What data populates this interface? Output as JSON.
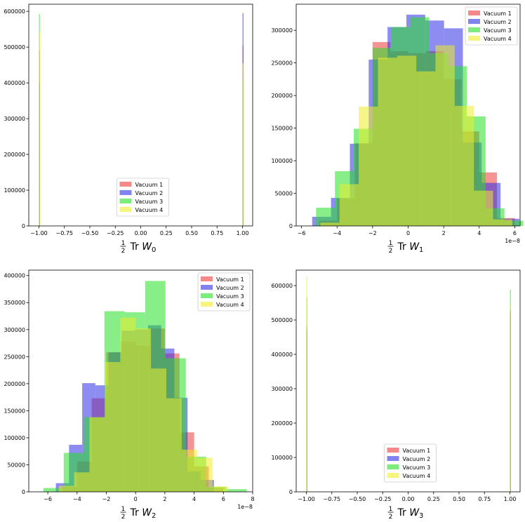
{
  "colors": {
    "vac1": "#ef3b3b",
    "vac2": "#2f2fe6",
    "vac3": "#27e027",
    "vac4": "#eded2a"
  },
  "chart_data": [
    {
      "type": "bar",
      "label_prefix": "1/2 Tr W",
      "label_sub": "0",
      "xlim": [
        -1.1,
        1.1
      ],
      "ylim": [
        0,
        620000
      ],
      "xticks": [
        -1.0,
        -0.75,
        -0.5,
        -0.25,
        0.0,
        0.25,
        0.5,
        0.75,
        1.0
      ],
      "xtick_labels": [
        "−1.00",
        "−0.75",
        "−0.50",
        "−0.25",
        "0.00",
        "0.25",
        "0.50",
        "0.75",
        "1.00"
      ],
      "yticks": [
        0,
        100000,
        200000,
        300000,
        400000,
        500000,
        600000
      ],
      "ytick_labels": [
        "0",
        "100000",
        "200000",
        "300000",
        "400000",
        "500000",
        "600000"
      ],
      "offset": "",
      "legend_position": "lower-center",
      "series": [
        {
          "name": "Vacuum 1",
          "bars": [
            {
              "x": -1.0,
              "w": 0.004,
              "h": 490000
            },
            {
              "x": 1.0,
              "w": 0.004,
              "h": 505000
            }
          ]
        },
        {
          "name": "Vacuum 2",
          "bars": [
            {
              "x": -1.0,
              "w": 0.004,
              "h": 400000
            },
            {
              "x": 1.0,
              "w": 0.004,
              "h": 595000
            }
          ]
        },
        {
          "name": "Vacuum 3",
          "bars": [
            {
              "x": -1.0,
              "w": 0.004,
              "h": 592000
            },
            {
              "x": 1.0,
              "w": 0.004,
              "h": 408000
            }
          ]
        },
        {
          "name": "Vacuum 4",
          "bars": [
            {
              "x": -1.0,
              "w": 0.004,
              "h": 545000
            },
            {
              "x": 1.0,
              "w": 0.004,
              "h": 455000
            }
          ]
        }
      ]
    },
    {
      "type": "bar",
      "label_prefix": "1/2 Tr W",
      "label_sub": "1",
      "xlim": [
        -6.3,
        6.3
      ],
      "ylim": [
        0,
        340000
      ],
      "xticks": [
        -6,
        -4,
        -2,
        0,
        2,
        4,
        6
      ],
      "xtick_labels": [
        "−6",
        "−4",
        "−2",
        "0",
        "2",
        "4",
        "6"
      ],
      "yticks": [
        0,
        50000,
        100000,
        150000,
        200000,
        250000,
        300000
      ],
      "ytick_labels": [
        "0",
        "50000",
        "100000",
        "150000",
        "200000",
        "250000",
        "300000"
      ],
      "offset": "1e−8",
      "legend_position": "upper-right",
      "series": [
        {
          "name": "Vacuum 1",
          "bars": [
            {
              "x": -5.0,
              "w": 1.0,
              "h": 8000
            },
            {
              "x": -4.0,
              "w": 1.0,
              "h": 42000
            },
            {
              "x": -3.0,
              "w": 1.0,
              "h": 127000
            },
            {
              "x": -2.0,
              "w": 1.0,
              "h": 282000
            },
            {
              "x": -1.0,
              "w": 1.0,
              "h": 268000
            },
            {
              "x": 0.0,
              "w": 1.0,
              "h": 265000
            },
            {
              "x": 1.0,
              "w": 1.0,
              "h": 268000
            },
            {
              "x": 2.0,
              "w": 1.0,
              "h": 225000
            },
            {
              "x": 3.0,
              "w": 1.0,
              "h": 145000
            },
            {
              "x": 4.0,
              "w": 1.0,
              "h": 82000
            },
            {
              "x": 5.0,
              "w": 1.0,
              "h": 12000
            }
          ]
        },
        {
          "name": "Vacuum 2",
          "bars": [
            {
              "x": -5.4,
              "w": 1.06,
              "h": 14000
            },
            {
              "x": -4.34,
              "w": 1.06,
              "h": 43000
            },
            {
              "x": -3.28,
              "w": 1.06,
              "h": 126000
            },
            {
              "x": -2.22,
              "w": 1.06,
              "h": 255000
            },
            {
              "x": -1.16,
              "w": 1.06,
              "h": 305000
            },
            {
              "x": -0.1,
              "w": 1.06,
              "h": 324000
            },
            {
              "x": 0.96,
              "w": 1.06,
              "h": 315000
            },
            {
              "x": 2.02,
              "w": 1.06,
              "h": 303000
            },
            {
              "x": 3.08,
              "w": 1.06,
              "h": 128000
            },
            {
              "x": 4.14,
              "w": 1.06,
              "h": 66000
            },
            {
              "x": 5.2,
              "w": 1.06,
              "h": 11000
            }
          ]
        },
        {
          "name": "Vacuum 3",
          "bars": [
            {
              "x": -5.18,
              "w": 1.06,
              "h": 28000
            },
            {
              "x": -4.12,
              "w": 1.06,
              "h": 84000
            },
            {
              "x": -3.06,
              "w": 1.06,
              "h": 149000
            },
            {
              "x": -2.0,
              "w": 1.06,
              "h": 273000
            },
            {
              "x": -0.94,
              "w": 1.06,
              "h": 305000
            },
            {
              "x": 0.12,
              "w": 1.06,
              "h": 320000
            },
            {
              "x": 1.18,
              "w": 1.06,
              "h": 265000
            },
            {
              "x": 2.24,
              "w": 1.06,
              "h": 245000
            },
            {
              "x": 3.3,
              "w": 1.06,
              "h": 168000
            },
            {
              "x": 4.36,
              "w": 1.06,
              "h": 27000
            },
            {
              "x": 5.42,
              "w": 1.06,
              "h": 8000
            }
          ]
        },
        {
          "name": "Vacuum 4",
          "bars": [
            {
              "x": -4.94,
              "w": 1.08,
              "h": 5000
            },
            {
              "x": -3.86,
              "w": 1.08,
              "h": 64000
            },
            {
              "x": -2.78,
              "w": 1.08,
              "h": 183000
            },
            {
              "x": -1.7,
              "w": 1.08,
              "h": 258000
            },
            {
              "x": -0.62,
              "w": 1.08,
              "h": 261000
            },
            {
              "x": 0.46,
              "w": 1.08,
              "h": 237000
            },
            {
              "x": 1.54,
              "w": 1.08,
              "h": 277000
            },
            {
              "x": 2.62,
              "w": 1.08,
              "h": 184000
            },
            {
              "x": 3.7,
              "w": 1.08,
              "h": 54000
            },
            {
              "x": 4.78,
              "w": 1.08,
              "h": 10000
            }
          ]
        }
      ]
    },
    {
      "type": "bar",
      "label_prefix": "1/2 Tr W",
      "label_sub": "2",
      "xlim": [
        -7.3,
        8.0
      ],
      "ylim": [
        0,
        410000
      ],
      "xticks": [
        -6,
        -4,
        -2,
        0,
        2,
        4,
        6,
        8
      ],
      "xtick_labels": [
        "−6",
        "−4",
        "−2",
        "0",
        "2",
        "4",
        "6",
        "8"
      ],
      "yticks": [
        0,
        50000,
        100000,
        150000,
        200000,
        250000,
        300000,
        350000,
        400000
      ],
      "ytick_labels": [
        "0",
        "50000",
        "100000",
        "150000",
        "200000",
        "250000",
        "300000",
        "350000",
        "400000"
      ],
      "offset": "1e−8",
      "legend_position": "upper-right",
      "series": [
        {
          "name": "Vacuum 1",
          "bars": [
            {
              "x": -5.0,
              "w": 1.0,
              "h": 9000
            },
            {
              "x": -4.0,
              "w": 1.0,
              "h": 56000
            },
            {
              "x": -3.0,
              "w": 1.0,
              "h": 173000
            },
            {
              "x": -2.0,
              "w": 1.0,
              "h": 258000
            },
            {
              "x": -1.0,
              "w": 1.0,
              "h": 278000
            },
            {
              "x": 0.0,
              "w": 1.0,
              "h": 270000
            },
            {
              "x": 1.0,
              "w": 1.0,
              "h": 302000
            },
            {
              "x": 2.0,
              "w": 1.0,
              "h": 256000
            },
            {
              "x": 3.0,
              "w": 1.0,
              "h": 110000
            },
            {
              "x": 4.0,
              "w": 1.0,
              "h": 47000
            },
            {
              "x": 5.0,
              "w": 1.0,
              "h": 8000
            }
          ]
        },
        {
          "name": "Vacuum 2",
          "bars": [
            {
              "x": -5.45,
              "w": 0.9,
              "h": 16000
            },
            {
              "x": -4.55,
              "w": 0.9,
              "h": 87000
            },
            {
              "x": -3.65,
              "w": 0.9,
              "h": 201000
            },
            {
              "x": -2.75,
              "w": 0.9,
              "h": 197000
            },
            {
              "x": -1.85,
              "w": 0.9,
              "h": 258000
            },
            {
              "x": -0.95,
              "w": 0.9,
              "h": 298000
            },
            {
              "x": -0.05,
              "w": 0.9,
              "h": 300000
            },
            {
              "x": 0.85,
              "w": 0.9,
              "h": 308000
            },
            {
              "x": 1.75,
              "w": 0.9,
              "h": 265000
            },
            {
              "x": 2.65,
              "w": 0.9,
              "h": 174000
            },
            {
              "x": 3.55,
              "w": 0.9,
              "h": 38000
            },
            {
              "x": 4.45,
              "w": 0.9,
              "h": 22000
            }
          ]
        },
        {
          "name": "Vacuum 3",
          "bars": [
            {
              "x": -6.3,
              "w": 1.39,
              "h": 7000
            },
            {
              "x": -4.91,
              "w": 1.39,
              "h": 72000
            },
            {
              "x": -3.52,
              "w": 1.39,
              "h": 138000
            },
            {
              "x": -2.13,
              "w": 1.39,
              "h": 334000
            },
            {
              "x": -0.74,
              "w": 1.39,
              "h": 332000
            },
            {
              "x": 0.65,
              "w": 1.39,
              "h": 390000
            },
            {
              "x": 2.04,
              "w": 1.39,
              "h": 247000
            },
            {
              "x": 3.43,
              "w": 1.39,
              "h": 65000
            },
            {
              "x": 4.82,
              "w": 1.39,
              "h": 9000
            },
            {
              "x": 6.21,
              "w": 1.39,
              "h": 5000
            }
          ]
        },
        {
          "name": "Vacuum 4",
          "bars": [
            {
              "x": -5.25,
              "w": 1.05,
              "h": 11000
            },
            {
              "x": -4.2,
              "w": 1.05,
              "h": 36000
            },
            {
              "x": -3.15,
              "w": 1.05,
              "h": 138000
            },
            {
              "x": -2.1,
              "w": 1.05,
              "h": 240000
            },
            {
              "x": -1.05,
              "w": 1.05,
              "h": 322000
            },
            {
              "x": 0.0,
              "w": 1.05,
              "h": 302000
            },
            {
              "x": 1.05,
              "w": 1.05,
              "h": 228000
            },
            {
              "x": 2.1,
              "w": 1.05,
              "h": 173000
            },
            {
              "x": 3.15,
              "w": 1.05,
              "h": 78000
            },
            {
              "x": 4.2,
              "w": 1.05,
              "h": 63000
            },
            {
              "x": 5.25,
              "w": 1.05,
              "h": 10000
            }
          ]
        }
      ]
    },
    {
      "type": "bar",
      "label_prefix": "1/2 Tr W",
      "label_sub": "3",
      "xlim": [
        -1.1,
        1.1
      ],
      "ylim": [
        0,
        645000
      ],
      "xticks": [
        -1.0,
        -0.75,
        -0.5,
        -0.25,
        0.0,
        0.25,
        0.5,
        0.75,
        1.0
      ],
      "xtick_labels": [
        "−1.00",
        "−0.75",
        "−0.50",
        "−0.25",
        "0.00",
        "0.25",
        "0.50",
        "0.75",
        "1.00"
      ],
      "yticks": [
        0,
        100000,
        200000,
        300000,
        400000,
        500000,
        600000
      ],
      "ytick_labels": [
        "0",
        "100000",
        "200000",
        "300000",
        "400000",
        "500000",
        "600000"
      ],
      "offset": "",
      "legend_position": "lower-center",
      "series": [
        {
          "name": "Vacuum 1",
          "bars": [
            {
              "x": -1.0,
              "w": 0.004,
              "h": 480000
            },
            {
              "x": 1.0,
              "w": 0.004,
              "h": 520000
            }
          ]
        },
        {
          "name": "Vacuum 2",
          "bars": [
            {
              "x": -1.0,
              "w": 0.004,
              "h": 470000
            },
            {
              "x": 1.0,
              "w": 0.004,
              "h": 530000
            }
          ]
        },
        {
          "name": "Vacuum 3",
          "bars": [
            {
              "x": -1.0,
              "w": 0.004,
              "h": 565000
            },
            {
              "x": 1.0,
              "w": 0.004,
              "h": 588000
            }
          ]
        },
        {
          "name": "Vacuum 4",
          "bars": [
            {
              "x": -1.0,
              "w": 0.004,
              "h": 625000
            },
            {
              "x": 1.0,
              "w": 0.004,
              "h": 540000
            }
          ]
        }
      ]
    }
  ]
}
